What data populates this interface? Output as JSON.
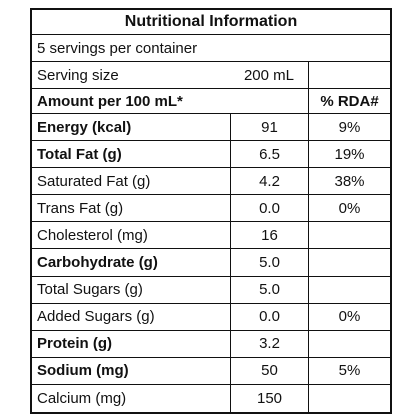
{
  "header": {
    "title": "Nutritional Information",
    "servings": "5 servings per container",
    "serving_size_label": "Serving size",
    "serving_size": "200 mL",
    "amount_per": "Amount per 100 mL*",
    "rda_header": "% RDA#"
  },
  "table": {
    "rows": [
      {
        "label": "Energy (kcal)",
        "amount": "91",
        "rda": "9%",
        "bold": true
      },
      {
        "label": "Total Fat (g)",
        "amount": "6.5",
        "rda": "19%",
        "bold": true
      },
      {
        "label": "Saturated Fat (g)",
        "amount": "4.2",
        "rda": "38%",
        "bold": false
      },
      {
        "label": "Trans Fat (g)",
        "amount": "0.0",
        "rda": "0%",
        "bold": false
      },
      {
        "label": "Cholesterol (mg)",
        "amount": "16",
        "bold": false
      },
      {
        "label": "Carbohydrate (g)",
        "amount": "5.0",
        "bold": true
      },
      {
        "label": "Total Sugars (g)",
        "amount": "5.0",
        "bold": false
      },
      {
        "label": "Added Sugars (g)",
        "amount": "0.0",
        "rda": "0%",
        "bold": false
      },
      {
        "label": "Protein (g)",
        "amount": "3.2",
        "bold": true
      },
      {
        "label": "Sodium (mg)",
        "amount": "50",
        "rda": "5%",
        "bold": true
      },
      {
        "label": "Calcium (mg)",
        "amount": "150",
        "bold": false
      }
    ]
  }
}
